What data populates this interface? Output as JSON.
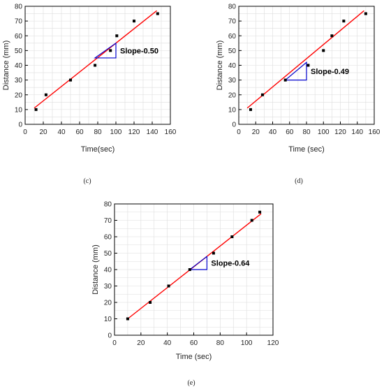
{
  "colors": {
    "fit_line": "#ff0000",
    "slope_triangle": "#0000cc",
    "points": "#000000",
    "grid": "#dddddd"
  },
  "chart_data": [
    {
      "id": "c",
      "type": "scatter",
      "caption": "(c)",
      "xlabel": "Time(sec)",
      "ylabel": "Distance (mm)",
      "xlim": [
        0,
        160
      ],
      "ylim": [
        0,
        80
      ],
      "xticks": [
        "0",
        "20",
        "40",
        "60",
        "80",
        "100",
        "120",
        "140",
        "160"
      ],
      "yticks": [
        "0",
        "10",
        "20",
        "30",
        "40",
        "50",
        "60",
        "70",
        "80"
      ],
      "x": [
        12,
        23,
        50,
        77,
        94,
        101,
        120,
        146
      ],
      "y": [
        10,
        20,
        30,
        40,
        50,
        60,
        70,
        75
      ],
      "fit_line": {
        "x": [
          10,
          145
        ],
        "y": [
          11,
          77
        ]
      },
      "slope_triangle": {
        "x": [
          77,
          100
        ],
        "y": [
          45,
          55
        ]
      },
      "slope_label": "Slope-0.50",
      "grid": true
    },
    {
      "id": "d",
      "type": "scatter",
      "caption": "(d)",
      "xlabel": "Time (sec)",
      "ylabel": "Distance (mm)",
      "xlim": [
        0,
        160
      ],
      "ylim": [
        0,
        80
      ],
      "xticks": [
        "0",
        "20",
        "40",
        "60",
        "80",
        "100",
        "120",
        "140",
        "160"
      ],
      "yticks": [
        "0",
        "10",
        "20",
        "30",
        "40",
        "50",
        "60",
        "70",
        "80"
      ],
      "x": [
        14,
        28,
        55,
        82,
        100,
        110,
        124,
        150
      ],
      "y": [
        10,
        20,
        30,
        40,
        50,
        60,
        70,
        75
      ],
      "fit_line": {
        "x": [
          10,
          148
        ],
        "y": [
          11,
          77
        ]
      },
      "slope_triangle": {
        "x": [
          55,
          80
        ],
        "y": [
          30,
          42
        ]
      },
      "slope_label": "Slope-0.49",
      "grid": true
    },
    {
      "id": "e",
      "type": "scatter",
      "caption": "(e)",
      "xlabel": "Time (sec)",
      "ylabel": "Distance (mm)",
      "xlim": [
        0,
        120
      ],
      "ylim": [
        0,
        80
      ],
      "xticks": [
        "0",
        "20",
        "40",
        "60",
        "80",
        "100",
        "120"
      ],
      "yticks": [
        "0",
        "10",
        "20",
        "30",
        "40",
        "50",
        "60",
        "70",
        "80"
      ],
      "x": [
        10,
        27,
        41,
        57,
        75,
        89,
        104,
        110
      ],
      "y": [
        10,
        20,
        30,
        40,
        50,
        60,
        70,
        75
      ],
      "fit_line": {
        "x": [
          10,
          111
        ],
        "y": [
          10,
          74
        ]
      },
      "slope_triangle": {
        "x": [
          57,
          70
        ],
        "y": [
          40,
          48
        ]
      },
      "slope_label": "Slope-0.64",
      "grid": true
    }
  ]
}
